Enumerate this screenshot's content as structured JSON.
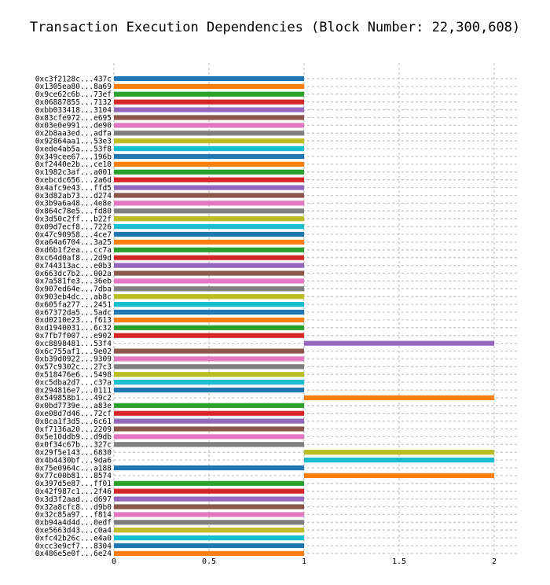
{
  "chart_data": {
    "type": "bar",
    "orientation": "horizontal",
    "title": "Transaction Execution Dependencies (Block Number: 22,300,608)",
    "xlabel": "",
    "ylabel": "",
    "xlim": [
      0,
      2.1
    ],
    "xticks": [
      0,
      0.5,
      1,
      1.5,
      2
    ],
    "xtick_labels": [
      "0",
      "0.5",
      "1",
      "1.5",
      "2"
    ],
    "grid": true,
    "bar_colors": [
      "#1f77b4",
      "#ff7f0e",
      "#2ca02c",
      "#d62728",
      "#9467bd",
      "#8c564b",
      "#e377c2",
      "#7f7f7f",
      "#bcbd22",
      "#17becf"
    ],
    "categories": [
      "0xc3f2128c...437c",
      "0x1305ea80...8a69",
      "0x9ce62c6b...73ef",
      "0x06887855...7132",
      "0xbb033418...3104",
      "0x83cfe972...e695",
      "0x03e0e991...de90",
      "0x2b8aa3ed...adfa",
      "0x92864aa1...53e3",
      "0xede4ab5a...53f8",
      "0x349cee67...196b",
      "0xf2440e2b...ce10",
      "0x1982c3af...a001",
      "0xebcdc656...2a6d",
      "0x4afc9e43...ffd5",
      "0x3d82ab73...d274",
      "0x3b9a6a48...4e8e",
      "0x864c78e5...fd80",
      "0x3d50c2ff...b22f",
      "0x09d7ecf8...7226",
      "0x47c90958...4ce7",
      "0xa64a6704...3a25",
      "0xd6b1f2ea...cc7a",
      "0xc64d0af8...2d9d",
      "0x744313ac...e0b3",
      "0x663dc7b2...002a",
      "0x7a581fe3...36eb",
      "0x907ed64e...7dba",
      "0x903eb4dc...ab8c",
      "0x605fa277...2451",
      "0x67372da5...5adc",
      "0xd0210e23...f613",
      "0xd1940031...6c32",
      "0x7fb7f007...e902",
      "0xc8898481...53f4",
      "0x6c755af1...9e02",
      "0xb39d0922...9309",
      "0x57c9302c...27c3",
      "0x518476e6...5498",
      "0xc5dba2d7...c37a",
      "0x294816e7...0111",
      "0x549858b1...49c2",
      "0x0bd7739e...a83e",
      "0xe08d7d46...72cf",
      "0x8ca1f3d5...6c61",
      "0xf7136a20...2209",
      "0x5e10ddb9...d9db",
      "0x0f34c67b...327c",
      "0x29f5e143...6830",
      "0x4b4430bf...9da6",
      "0x75e0964c...a188",
      "0x77c00b81...8574",
      "0x397d5e87...ff01",
      "0x42f987c1...2f46",
      "0x3d3f2aad...d697",
      "0x32a8cfc8...d9b0",
      "0x32c85a97...f814",
      "0xb94a4d4d...0edf",
      "0xe5663d43...c0a4",
      "0xfc42b26c...e4a0",
      "0xcc3e9cf7...8304",
      "0x486e5e0f...6e24"
    ],
    "starts": [
      0,
      0,
      0,
      0,
      0,
      0,
      0,
      0,
      0,
      0,
      0,
      0,
      0,
      0,
      0,
      0,
      0,
      0,
      0,
      0,
      0,
      0,
      0,
      0,
      0,
      0,
      0,
      0,
      0,
      0,
      0,
      0,
      0,
      0,
      1,
      0,
      0,
      0,
      0,
      0,
      0,
      1,
      0,
      0,
      0,
      0,
      0,
      0,
      1,
      1,
      0,
      1,
      0,
      0,
      0,
      0,
      0,
      0,
      0,
      0,
      0,
      0
    ],
    "values": [
      1,
      1,
      1,
      1,
      1,
      1,
      1,
      1,
      1,
      1,
      1,
      1,
      1,
      1,
      1,
      1,
      1,
      1,
      1,
      1,
      1,
      1,
      1,
      1,
      1,
      1,
      1,
      1,
      1,
      1,
      1,
      1,
      1,
      1,
      2,
      1,
      1,
      1,
      1,
      1,
      1,
      2,
      1,
      1,
      1,
      1,
      1,
      1,
      2,
      2,
      1,
      2,
      1,
      1,
      1,
      1,
      1,
      1,
      1,
      1,
      1,
      1
    ]
  }
}
